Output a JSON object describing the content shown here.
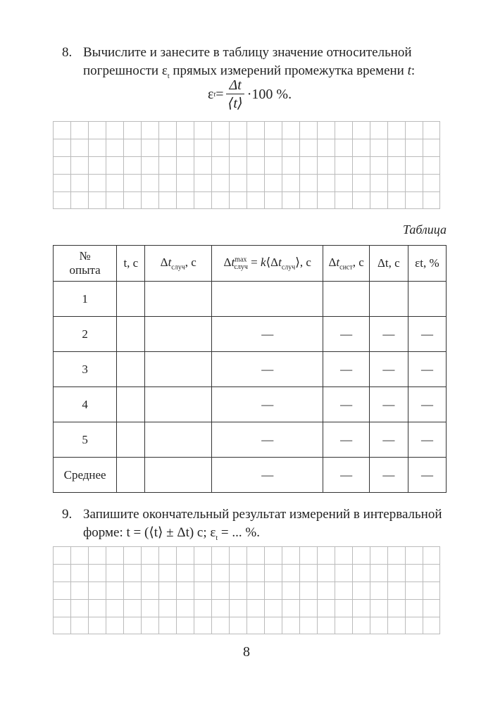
{
  "task8": {
    "number": "8.",
    "text": "Вычислите и занесите в таблицу значение относительной погрешности ε",
    "text_sub": "t",
    "text_tail": " прямых измерений промежутка времени ",
    "text_var": "t",
    "text_end": ":",
    "formula": {
      "lhs": "ε",
      "lhs_sub": "t",
      "eq": " =",
      "numerator": "Δt",
      "denominator": "⟨t⟩",
      "tail": "·100 %."
    }
  },
  "table": {
    "caption": "Таблица",
    "headers": [
      "№ опыта",
      "t, с",
      "Δtслуч, с",
      "Δtmaxслуч = k⟨Δtслуч⟩, с",
      "Δtсист, с",
      "Δt, с",
      "εt, %"
    ],
    "rows": [
      [
        "1",
        "",
        "",
        "",
        "",
        "",
        ""
      ],
      [
        "2",
        "",
        "",
        "—",
        "—",
        "—",
        "—"
      ],
      [
        "3",
        "",
        "",
        "—",
        "—",
        "—",
        "—"
      ],
      [
        "4",
        "",
        "",
        "—",
        "—",
        "—",
        "—"
      ],
      [
        "5",
        "",
        "",
        "—",
        "—",
        "—",
        "—"
      ],
      [
        "Среднее",
        "",
        "",
        "—",
        "—",
        "—",
        "—"
      ]
    ]
  },
  "task9": {
    "number": "9.",
    "text": "Запишите окончательный результат измерений в интервальной форме: t = (⟨t⟩ ± Δt) с; ε",
    "text_sub": "t",
    "text_end": " = ... %."
  },
  "page_number": "8"
}
